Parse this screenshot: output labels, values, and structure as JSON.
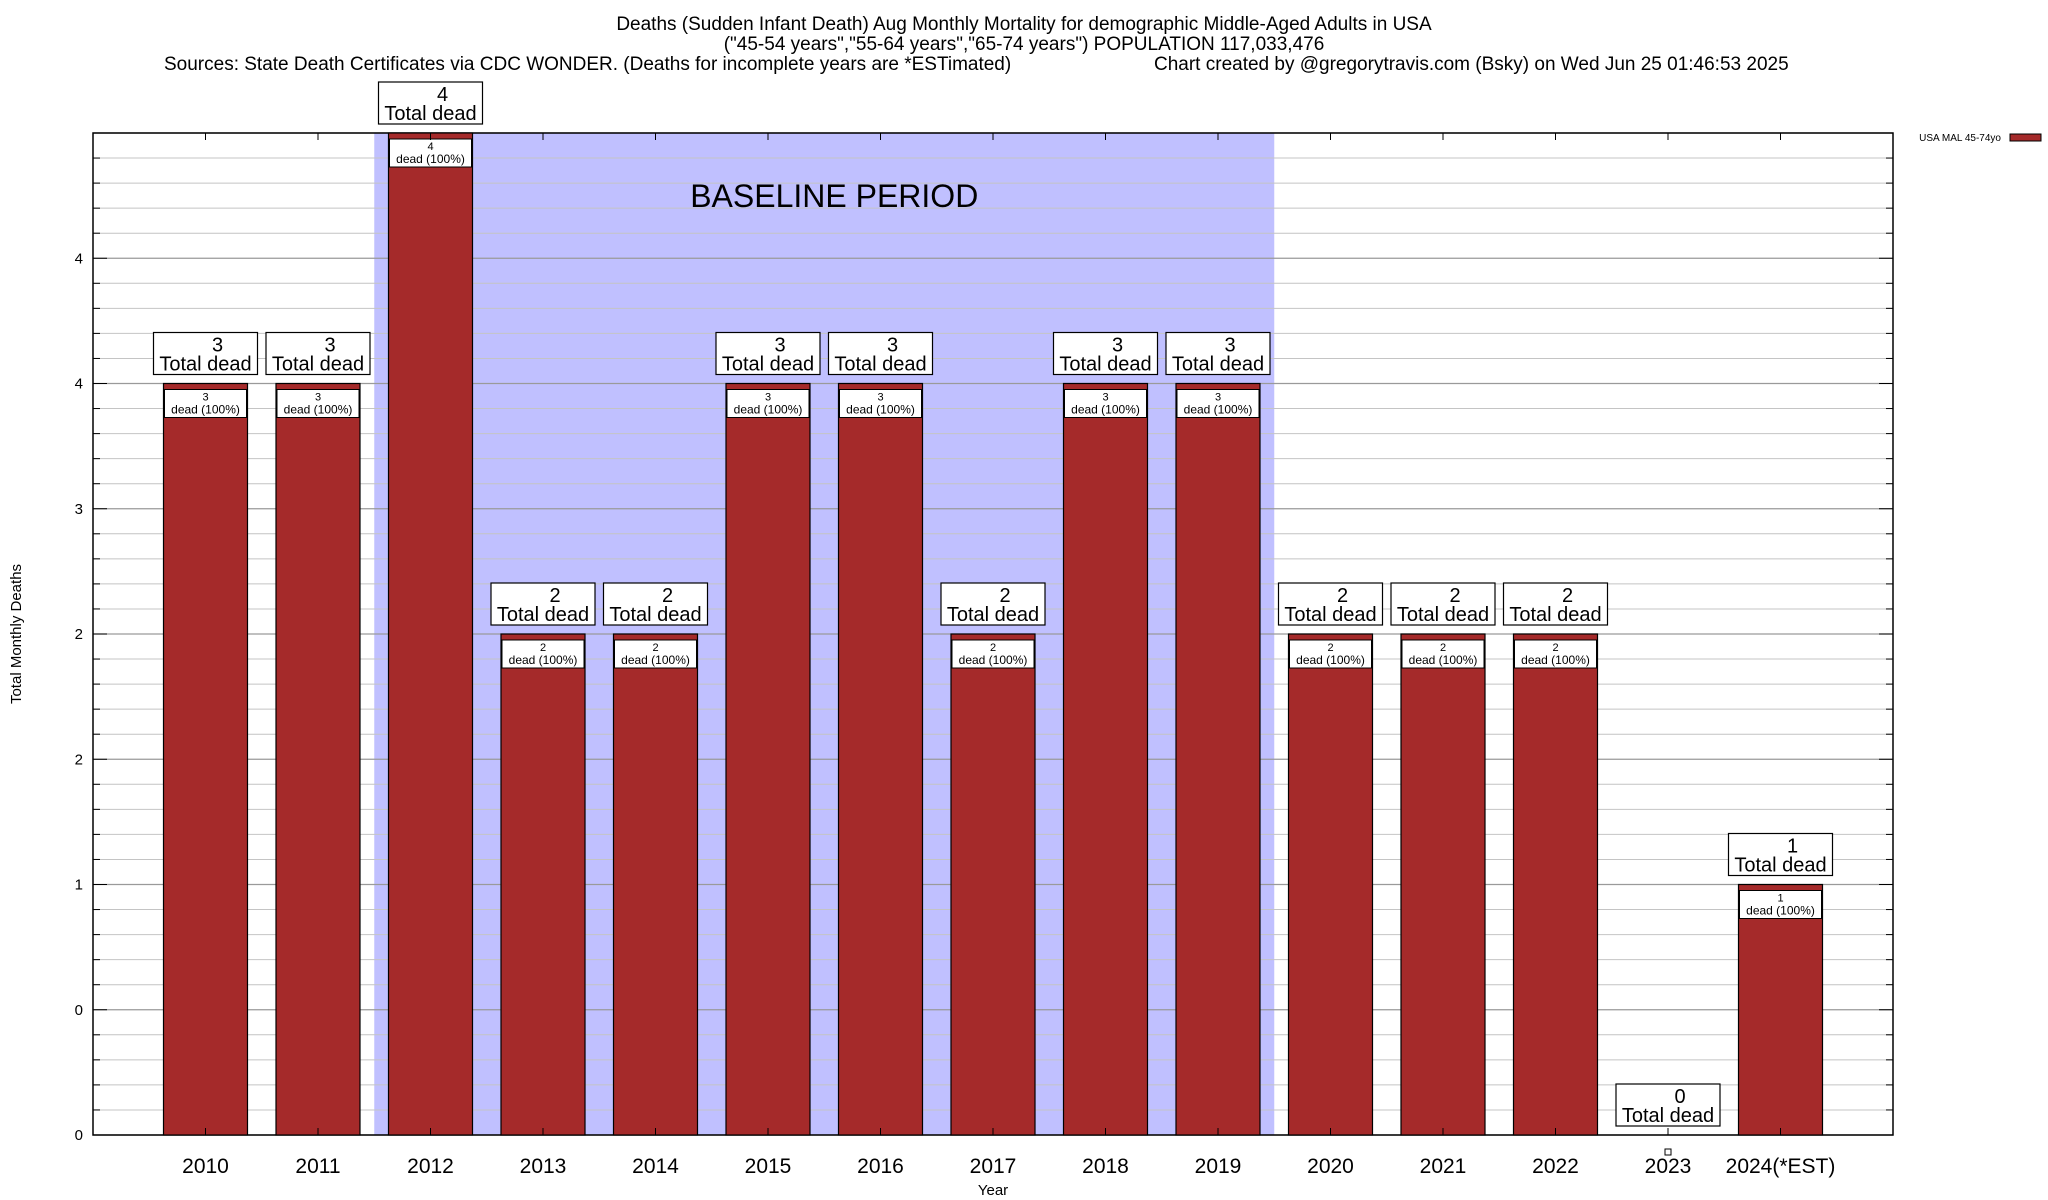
{
  "chart_data": {
    "type": "bar",
    "title": "Deaths (Sudden Infant Death) Aug Monthly Mortality for demographic Middle-Aged Adults in USA",
    "subtitle": "(\"45-54 years\",\"55-64 years\",\"65-74 years\") POPULATION 117,033,476",
    "source_left": "Sources: State Death Certificates via CDC WONDER. (Deaths for incomplete years are *ESTimated)",
    "source_right": "Chart created by @gregorytravis.com (Bsky) on Wed Jun 25 01:46:53 2025",
    "xlabel": "Year",
    "ylabel": "Total Monthly Deaths",
    "ylim": [
      0,
      4
    ],
    "y_tick_labels": [
      "0",
      "0",
      "1",
      "2",
      "2",
      "3",
      "4",
      "4"
    ],
    "grid": true,
    "legend": {
      "position": "top-right",
      "label": "USA MAL 45-74yo"
    },
    "baseline": {
      "label": "BASELINE PERIOD",
      "from": "2012",
      "to": "2019",
      "color": "#c0c0ff"
    },
    "bar_color": "#a52a2a",
    "categories": [
      "2010",
      "2011",
      "2012",
      "2013",
      "2014",
      "2015",
      "2016",
      "2017",
      "2018",
      "2019",
      "2020",
      "2021",
      "2022",
      "2023",
      "2024(*EST)"
    ],
    "series": [
      {
        "name": "USA MAL 45-74yo",
        "values": [
          3,
          3,
          4,
          2,
          2,
          3,
          3,
          2,
          3,
          3,
          2,
          2,
          2,
          0,
          1
        ],
        "total_labels": [
          "3",
          "3",
          "4",
          "2",
          "2",
          "3",
          "3",
          "2",
          "3",
          "3",
          "2",
          "2",
          "2",
          "0",
          "1"
        ]
      }
    ],
    "total_suffix": "Total dead",
    "inner_suffix": "dead (100%)"
  }
}
